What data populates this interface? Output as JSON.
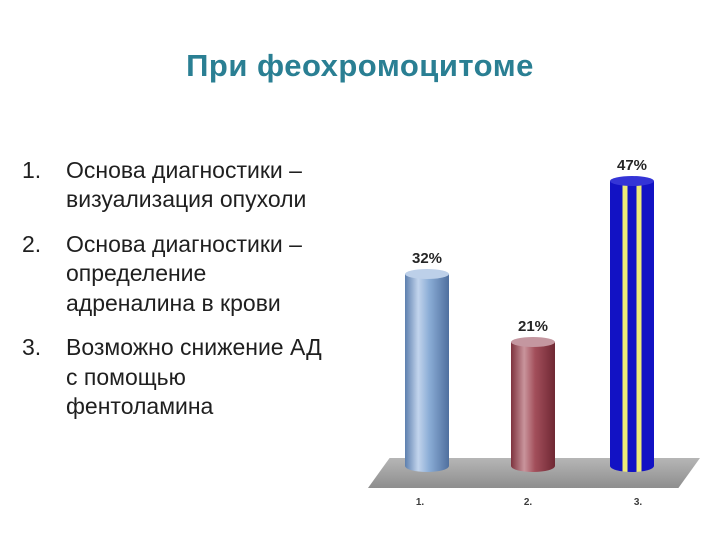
{
  "slide": {
    "title": "При феохромоцитоме",
    "list": [
      {
        "number": "1.",
        "text": "Основа диагностики – визуализация опухоли"
      },
      {
        "number": "2.",
        "text": "Основа диагностики – определение адреналина в крови"
      },
      {
        "number": "3.",
        "text": "Возможно снижение АД с помощью фентоламина"
      }
    ]
  },
  "chart_data": {
    "type": "bar",
    "categories": [
      "1.",
      "2.",
      "3."
    ],
    "values": [
      32,
      21,
      47
    ],
    "value_labels": [
      "32%",
      "21%",
      "47%"
    ],
    "colors": [
      "#7fa1cf",
      "#a04f5b",
      "#1212c4"
    ],
    "stripe_color": "#eeea77",
    "platform_color": "#a3a3a3",
    "title": "",
    "xlabel": "",
    "ylabel": "",
    "ylim": [
      0,
      50
    ],
    "grid": false,
    "legend": false,
    "style": "3d-cylinder"
  }
}
